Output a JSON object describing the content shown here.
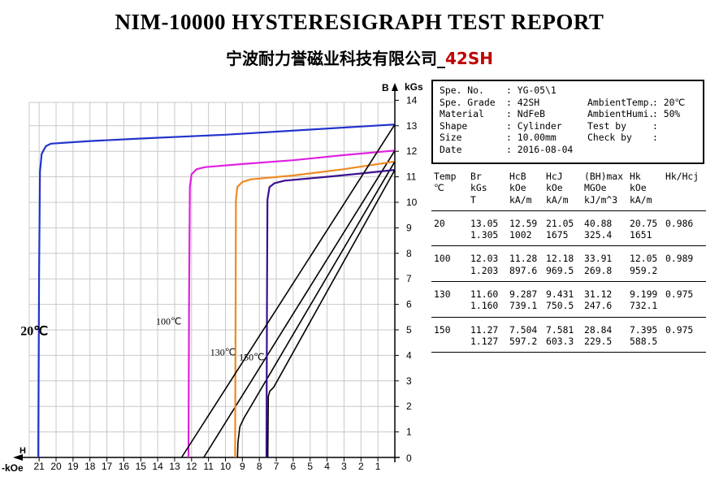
{
  "title": "NIM-10000 HYSTERESIGRAPH TEST REPORT",
  "subtitle_main": "宁波耐力誉磁业科技有限公司_",
  "subtitle_grade": "42SH",
  "colors": {
    "c20": "#2233cc",
    "c100": "#e020e0",
    "c130": "#ee8a22",
    "c150": "#3a1090"
  },
  "info": {
    "rows": [
      [
        "Spe. No.",
        ": YG-05\\1",
        "",
        ""
      ],
      [
        "Spe. Grade",
        ": 42SH",
        "AmbientTemp.",
        ": 20℃"
      ],
      [
        "Material",
        ": NdFeB",
        "AmbientHumi.",
        ": 50%"
      ],
      [
        "Shape",
        ": Cylinder",
        "Test by",
        ":"
      ],
      [
        "Size",
        ": 10.00mm",
        "Check by",
        ":"
      ],
      [
        "Date",
        ": 2016-08-04",
        "",
        ""
      ]
    ]
  },
  "results": {
    "header": [
      [
        "Temp",
        "Br",
        "HcB",
        "HcJ",
        "(BH)max",
        "Hk",
        "Hk/Hcj"
      ],
      [
        "℃",
        "kGs",
        "kOe",
        "kOe",
        "MGOe",
        "kOe",
        ""
      ],
      [
        "",
        "T",
        "kA/m",
        "kA/m",
        "kJ/m^3",
        "kA/m",
        ""
      ]
    ],
    "rows": [
      {
        "l1": [
          "20",
          "13.05",
          "12.59",
          "21.05",
          "40.88",
          "20.75",
          "0.986"
        ],
        "l2": [
          "",
          "1.305",
          "1002",
          "1675",
          "325.4",
          "1651",
          ""
        ]
      },
      {
        "l1": [
          "100",
          "12.03",
          "11.28",
          "12.18",
          "33.91",
          "12.05",
          "0.989"
        ],
        "l2": [
          "",
          "1.203",
          "897.6",
          "969.5",
          "269.8",
          "959.2",
          ""
        ]
      },
      {
        "l1": [
          "130",
          "11.60",
          "9.287",
          "9.431",
          "31.12",
          "9.199",
          "0.975"
        ],
        "l2": [
          "",
          "1.160",
          "739.1",
          "750.5",
          "247.6",
          "732.1",
          ""
        ]
      },
      {
        "l1": [
          "150",
          "11.27",
          "7.504",
          "7.581",
          "28.84",
          "7.395",
          "0.975"
        ],
        "l2": [
          "",
          "1.127",
          "597.2",
          "603.3",
          "229.5",
          "588.5",
          ""
        ]
      }
    ]
  },
  "chart_data": {
    "type": "line",
    "xlabel_top": "H",
    "xlabel_bottom": "-kOe",
    "ylabel_top": "B",
    "ylabel_bottom": "kGs",
    "xlim": [
      0,
      24
    ],
    "ylim": [
      0,
      14
    ],
    "x_ticks": [
      21,
      20,
      19,
      18,
      17,
      16,
      15,
      14,
      13,
      12,
      11,
      10,
      9,
      8,
      7,
      6,
      5,
      4,
      3,
      2,
      1
    ],
    "y_ticks": [
      1,
      2,
      3,
      4,
      5,
      6,
      7,
      8,
      9,
      10,
      11,
      12,
      13,
      14
    ],
    "curve_labels": [
      {
        "text": "20℃",
        "H": 22.1,
        "B": 4.8,
        "size": 16,
        "weight": "bold"
      },
      {
        "text": "100℃",
        "H": 14.1,
        "B": 5.2,
        "size": 12,
        "weight": "normal"
      },
      {
        "text": "130℃",
        "H": 10.9,
        "B": 4.0,
        "size": 12,
        "weight": "normal"
      },
      {
        "text": "150℃",
        "H": 9.2,
        "B": 3.8,
        "size": 12,
        "weight": "normal"
      }
    ],
    "series": [
      {
        "key": "c20",
        "J": [
          [
            21.05,
            0
          ],
          [
            21.0,
            7.2
          ],
          [
            20.95,
            11.2
          ],
          [
            20.85,
            11.9
          ],
          [
            20.6,
            12.2
          ],
          [
            20.3,
            12.3
          ],
          [
            18,
            12.4
          ],
          [
            15,
            12.5
          ],
          [
            10,
            12.65
          ],
          [
            5,
            12.85
          ],
          [
            0,
            13.05
          ]
        ],
        "B": []
      },
      {
        "key": "c100",
        "J": [
          [
            12.18,
            0
          ],
          [
            12.15,
            6.0
          ],
          [
            12.1,
            10.6
          ],
          [
            12.0,
            11.1
          ],
          [
            11.7,
            11.3
          ],
          [
            11.2,
            11.38
          ],
          [
            9,
            11.5
          ],
          [
            6,
            11.65
          ],
          [
            3,
            11.85
          ],
          [
            0,
            12.03
          ]
        ],
        "B": [
          [
            11.28,
            0
          ],
          [
            0,
            12.03
          ]
        ]
      },
      {
        "key": "c130",
        "J": [
          [
            9.43,
            0
          ],
          [
            9.4,
            6.0
          ],
          [
            9.38,
            10.1
          ],
          [
            9.3,
            10.6
          ],
          [
            9.0,
            10.8
          ],
          [
            8.5,
            10.9
          ],
          [
            6,
            11.05
          ],
          [
            3,
            11.3
          ],
          [
            0,
            11.6
          ]
        ],
        "B": [
          [
            9.29,
            0
          ],
          [
            9.26,
            0.6
          ],
          [
            9.15,
            1.2
          ],
          [
            8.9,
            1.55
          ],
          [
            0,
            11.6
          ]
        ]
      },
      {
        "key": "c150",
        "J": [
          [
            7.58,
            0
          ],
          [
            7.55,
            6.0
          ],
          [
            7.52,
            10.1
          ],
          [
            7.4,
            10.6
          ],
          [
            7.1,
            10.75
          ],
          [
            6.5,
            10.85
          ],
          [
            4,
            11.0
          ],
          [
            2,
            11.13
          ],
          [
            0,
            11.27
          ]
        ],
        "B": [
          [
            7.5,
            0
          ],
          [
            7.47,
            2.4
          ],
          [
            7.38,
            2.6
          ],
          [
            7.15,
            2.75
          ],
          [
            0,
            11.27
          ]
        ]
      }
    ]
  }
}
